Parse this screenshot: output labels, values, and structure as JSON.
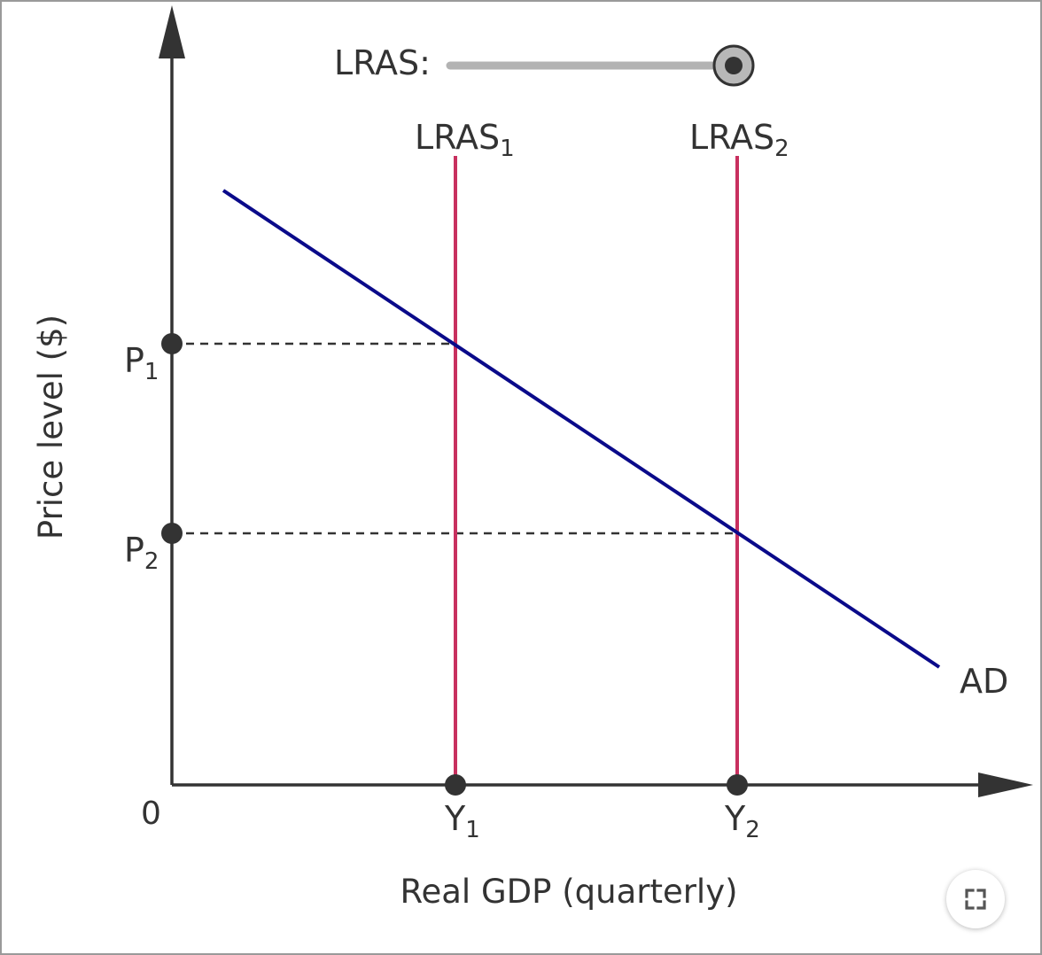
{
  "slider": {
    "label": "LRAS:",
    "value": 1.0,
    "track_color": "#b3b3b3",
    "knob_color": "#333333"
  },
  "axes": {
    "origin_label": "0",
    "x_label": "Real GDP (quarterly)",
    "y_label": "Price level ($)",
    "axis_color": "#333333"
  },
  "curves": {
    "lras1": {
      "label": "LRAS",
      "subscript": "1",
      "color": "#c8305f"
    },
    "lras2": {
      "label": "LRAS",
      "subscript": "2",
      "color": "#c8305f"
    },
    "ad": {
      "label": "AD",
      "color": "#0a0a8a"
    }
  },
  "points": {
    "y1": {
      "label": "Y",
      "subscript": "1"
    },
    "y2": {
      "label": "Y",
      "subscript": "2"
    },
    "p1": {
      "label": "P",
      "subscript": "1"
    },
    "p2": {
      "label": "P",
      "subscript": "2"
    }
  },
  "controls": {
    "fullscreen_icon": "expand-icon"
  }
}
